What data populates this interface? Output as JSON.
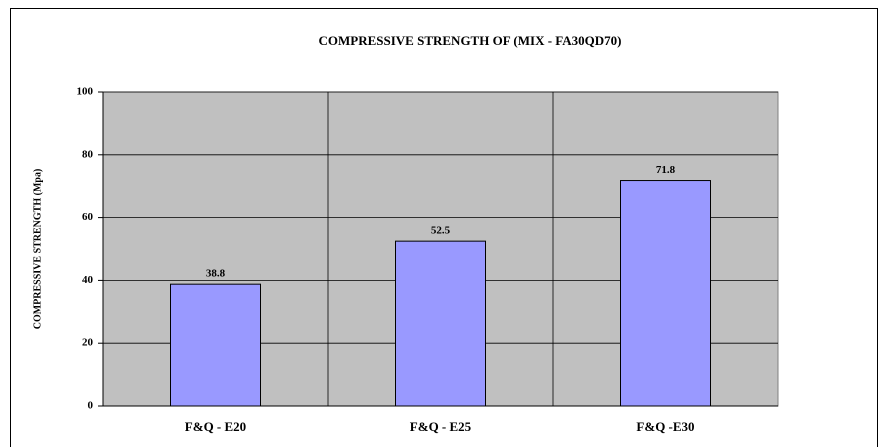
{
  "chart_data": {
    "type": "bar",
    "title": "COMPRESSIVE STRENGTH OF (MIX - FA30QD70)",
    "y_label": "COMPRESSIVE STRENGTH (Mpa)",
    "categories": [
      "F&Q - E20",
      "F&Q - E25",
      "F&Q -E30"
    ],
    "values": [
      38.8,
      52.5,
      71.8
    ],
    "color": "#9999ff",
    "plot_background": "#c0c0c0",
    "ylim": [
      0,
      100
    ],
    "yticks": [
      0,
      20,
      40,
      60,
      80,
      100
    ],
    "grid": true
  }
}
